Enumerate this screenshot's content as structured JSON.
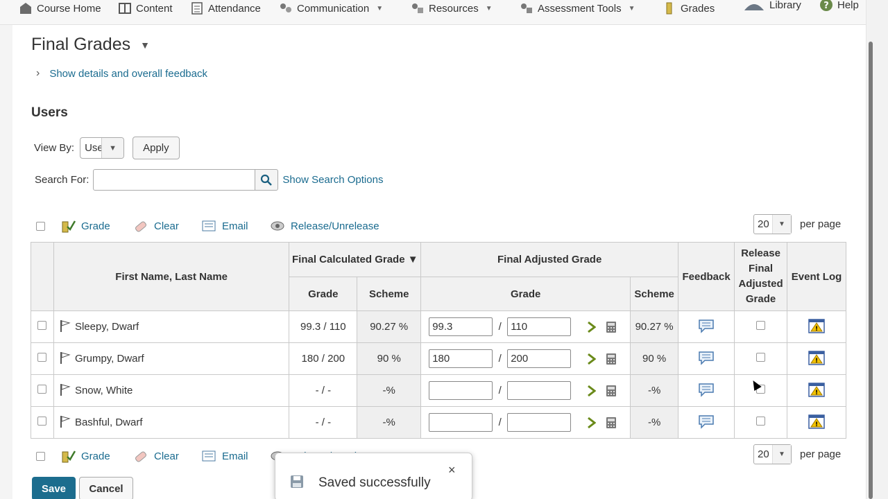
{
  "nav": {
    "items": [
      {
        "label": "Course Home",
        "icon": "course-home-icon"
      },
      {
        "label": "Content",
        "icon": "book-icon"
      },
      {
        "label": "Attendance",
        "icon": "attendance-icon"
      },
      {
        "label": "Communication",
        "icon": "communication-icon"
      },
      {
        "label": "Resources",
        "icon": "resources-icon"
      },
      {
        "label": "Assessment Tools",
        "icon": "assessment-icon"
      },
      {
        "label": "Grades",
        "icon": "ruler-icon"
      },
      {
        "label": "Library",
        "icon": "library-icon"
      },
      {
        "label": "Help",
        "icon": "help-icon"
      }
    ]
  },
  "page": {
    "title": "Final Grades",
    "details_link": "Show details and overall feedback",
    "users_heading": "Users"
  },
  "viewby": {
    "label": "View By:",
    "value": "User",
    "apply": "Apply"
  },
  "search": {
    "label": "Search For:",
    "value": "",
    "options_link": "Show Search Options"
  },
  "actions": {
    "grade": "Grade",
    "clear": "Clear",
    "email": "Email",
    "release": "Release/Unrelease"
  },
  "paging": {
    "per_page_value": "20",
    "per_page_label": "per page"
  },
  "table": {
    "headers": {
      "name": "First Name, Last Name",
      "final_calc": "Final Calculated Grade",
      "final_adj": "Final Adjusted Grade",
      "feedback": "Feedback",
      "release": "Release Final Adjusted Grade",
      "event_log": "Event Log",
      "grade": "Grade",
      "scheme": "Scheme"
    },
    "sort_indicator": "▼",
    "rows": [
      {
        "name": "Sleepy, Dwarf",
        "calc_grade": "99.3 / 110",
        "calc_scheme": "90.27 %",
        "adj_num": "99.3",
        "adj_den": "110",
        "adj_scheme": "90.27 %"
      },
      {
        "name": "Grumpy, Dwarf",
        "calc_grade": "180 / 200",
        "calc_scheme": "90 %",
        "adj_num": "180",
        "adj_den": "200",
        "adj_scheme": "90 %"
      },
      {
        "name": "Snow, White",
        "calc_grade": "- / -",
        "calc_scheme": "-%",
        "adj_num": "",
        "adj_den": "",
        "adj_scheme": "-%"
      },
      {
        "name": "Bashful, Dwarf",
        "calc_grade": "- / -",
        "calc_scheme": "-%",
        "adj_num": "",
        "adj_den": "",
        "adj_scheme": "-%"
      }
    ]
  },
  "buttons": {
    "save": "Save",
    "cancel": "Cancel"
  },
  "toast": {
    "message": "Saved successfully",
    "close": "×"
  },
  "colors": {
    "link": "#1a6b8f",
    "primary_button": "#1c6d8e"
  }
}
